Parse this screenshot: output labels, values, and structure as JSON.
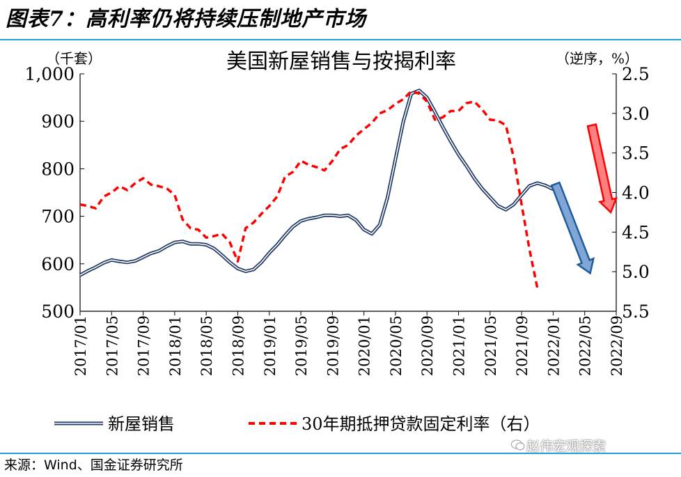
{
  "figure_title": "图表7：高利率仍将持续压制地产市场",
  "source_text": "来源：Wind、国金证券研究所",
  "watermark_text": "赵伟宏观探索",
  "colors": {
    "rule": "#1a9fd6",
    "sales_line": "#1f3864",
    "rate_line": "#ff0000",
    "arrow_blue": "#1f5c99",
    "arrow_blue_fill": "#7fa6d6",
    "arrow_red": "#ff0000",
    "arrow_red_fill": "#ff8080"
  },
  "chart_data": {
    "type": "line",
    "title": "美国新屋销售与按揭利率",
    "left_axis_label": "（千套）",
    "right_axis_label": "（逆序，%）",
    "left_ylim": [
      500,
      1000
    ],
    "left_ticks": [
      "1,000",
      "900",
      "800",
      "700",
      "600",
      "500"
    ],
    "right_ylim": [
      2.5,
      5.5
    ],
    "right_reversed": true,
    "right_ticks": [
      "2.5",
      "3.0",
      "3.5",
      "4.0",
      "4.5",
      "5.0",
      "5.5"
    ],
    "x_tick_labels": [
      "2017/01",
      "2017/05",
      "2017/09",
      "2018/01",
      "2018/05",
      "2018/09",
      "2019/01",
      "2019/05",
      "2019/09",
      "2020/01",
      "2020/05",
      "2020/09",
      "2021/01",
      "2021/05",
      "2021/09",
      "2022/01",
      "2022/05",
      "2022/09"
    ],
    "legend": [
      "新屋销售",
      "30年期抵押贷款固定利率（右）"
    ],
    "series": [
      {
        "name": "新屋销售",
        "axis": "left",
        "values": [
          576,
          585,
          593,
          602,
          608,
          605,
          603,
          606,
          614,
          622,
          627,
          637,
          645,
          647,
          642,
          642,
          640,
          632,
          618,
          603,
          590,
          584,
          588,
          603,
          623,
          640,
          660,
          678,
          690,
          695,
          698,
          702,
          702,
          700,
          702,
          692,
          672,
          663,
          682,
          740,
          820,
          900,
          958,
          965,
          950,
          920,
          888,
          858,
          830,
          806,
          780,
          758,
          740,
          722,
          714,
          725,
          745,
          764,
          770,
          765,
          757
        ],
        "x_start": "2017/01",
        "step": "month"
      },
      {
        "name": "30年期抵押贷款固定利率（右）",
        "axis": "right",
        "values": [
          4.15,
          4.17,
          4.2,
          4.05,
          4.0,
          3.92,
          3.97,
          3.88,
          3.82,
          3.9,
          3.92,
          3.95,
          4.03,
          4.34,
          4.45,
          4.47,
          4.57,
          4.55,
          4.52,
          4.63,
          4.87,
          4.45,
          4.38,
          4.27,
          4.17,
          4.05,
          3.8,
          3.74,
          3.6,
          3.65,
          3.68,
          3.72,
          3.6,
          3.45,
          3.4,
          3.28,
          3.2,
          3.12,
          3.0,
          2.96,
          2.88,
          2.82,
          2.72,
          2.75,
          2.85,
          3.08,
          3.05,
          2.97,
          2.97,
          2.87,
          2.85,
          2.95,
          3.08,
          3.09,
          3.15,
          3.56,
          4.15,
          4.72,
          5.21
        ],
        "x_start": "2017/01",
        "step": "month"
      }
    ],
    "annotations": [
      {
        "type": "arrow",
        "color": "blue",
        "direction": "down",
        "from_x": "2022/01",
        "to_x": "2022/04"
      },
      {
        "type": "arrow",
        "color": "red",
        "direction": "down",
        "from_x": "2022/05",
        "to_x": "2022/07"
      }
    ]
  }
}
